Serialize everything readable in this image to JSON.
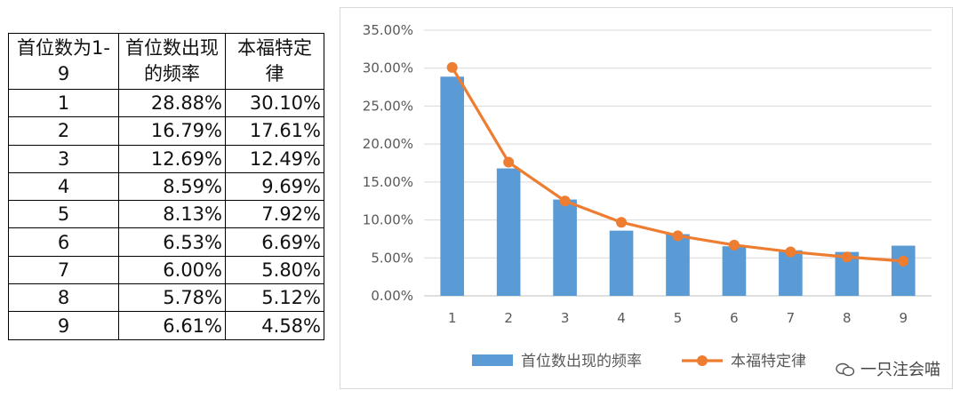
{
  "table": {
    "headers": [
      "首位数为1-9",
      "首位数出现的频率",
      "本福特定律"
    ],
    "rows": [
      [
        "1",
        "28.88%",
        "30.10%"
      ],
      [
        "2",
        "16.79%",
        "17.61%"
      ],
      [
        "3",
        "12.69%",
        "12.49%"
      ],
      [
        "4",
        "8.59%",
        "9.69%"
      ],
      [
        "5",
        "8.13%",
        "7.92%"
      ],
      [
        "6",
        "6.53%",
        "6.69%"
      ],
      [
        "7",
        "6.00%",
        "5.80%"
      ],
      [
        "8",
        "5.78%",
        "5.12%"
      ],
      [
        "9",
        "6.61%",
        "4.58%"
      ]
    ]
  },
  "chart_data": {
    "type": "bar",
    "categories": [
      "1",
      "2",
      "3",
      "4",
      "5",
      "6",
      "7",
      "8",
      "9"
    ],
    "series": [
      {
        "name": "首位数出现的频率",
        "type": "bar",
        "color": "#5B9BD5",
        "values": [
          28.88,
          16.79,
          12.69,
          8.59,
          8.13,
          6.53,
          6.0,
          5.78,
          6.61
        ]
      },
      {
        "name": "本福特定律",
        "type": "line",
        "color": "#ED7D31",
        "values": [
          30.1,
          17.61,
          12.49,
          9.69,
          7.92,
          6.69,
          5.8,
          5.12,
          4.58
        ]
      }
    ],
    "ylim": [
      0,
      35
    ],
    "yticks": [
      "0.00%",
      "5.00%",
      "10.00%",
      "15.00%",
      "20.00%",
      "25.00%",
      "30.00%",
      "35.00%"
    ],
    "grid": true,
    "legend_position": "bottom"
  },
  "watermark": {
    "text": "一只注会喵",
    "icon": "wechat-icon"
  }
}
